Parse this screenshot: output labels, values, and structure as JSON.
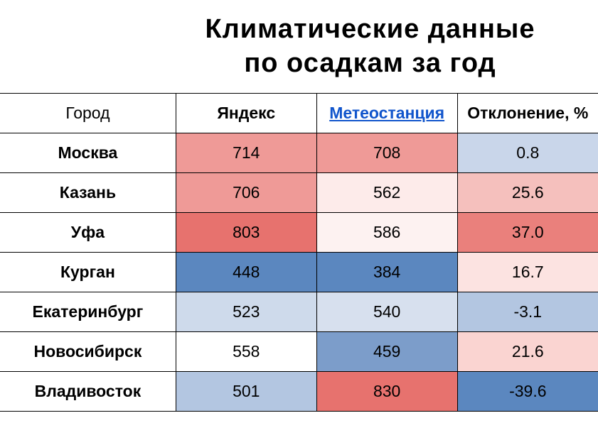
{
  "title_line1": "Климатические данные",
  "title_line2": "по осадкам за год",
  "columns": {
    "city": "Город",
    "yandex": "Яндекс",
    "station": "Метеостанция",
    "deviation": "Отклонение, %"
  },
  "rows": [
    {
      "city": "Москва",
      "yandex": "714",
      "station": "708",
      "deviation": "0.8",
      "yandex_bg": "#ef9a97",
      "station_bg": "#ef9a97",
      "deviation_bg": "#c9d6ea"
    },
    {
      "city": "Казань",
      "yandex": "706",
      "station": "562",
      "deviation": "25.6",
      "yandex_bg": "#ef9a97",
      "station_bg": "#fdebea",
      "deviation_bg": "#f5c0bd"
    },
    {
      "city": "Уфа",
      "yandex": "803",
      "station": "586",
      "deviation": "37.0",
      "yandex_bg": "#e7726e",
      "station_bg": "#fdf2f1",
      "deviation_bg": "#ea807c"
    },
    {
      "city": "Курган",
      "yandex": "448",
      "station": "384",
      "deviation": "16.7",
      "yandex_bg": "#5b87bf",
      "station_bg": "#5b87bf",
      "deviation_bg": "#fce3e1"
    },
    {
      "city": "Екатеринбург",
      "yandex": "523",
      "station": "540",
      "deviation": "-3.1",
      "yandex_bg": "#cedaeb",
      "station_bg": "#d7e0ee",
      "deviation_bg": "#b3c6e1"
    },
    {
      "city": "Новосибирск",
      "yandex": "558",
      "station": "459",
      "deviation": "21.6",
      "yandex_bg": "#ffffff",
      "station_bg": "#7c9dca",
      "deviation_bg": "#fad4d1"
    },
    {
      "city": "Владивосток",
      "yandex": "501",
      "station": "830",
      "deviation": "-39.6",
      "yandex_bg": "#b3c6e1",
      "station_bg": "#e7726e",
      "deviation_bg": "#5b87bf"
    }
  ],
  "style": {
    "background_color": "#ffffff",
    "border_color": "#000000",
    "title_fontsize": 38,
    "cell_fontsize": 23,
    "link_color": "#1155cc"
  }
}
